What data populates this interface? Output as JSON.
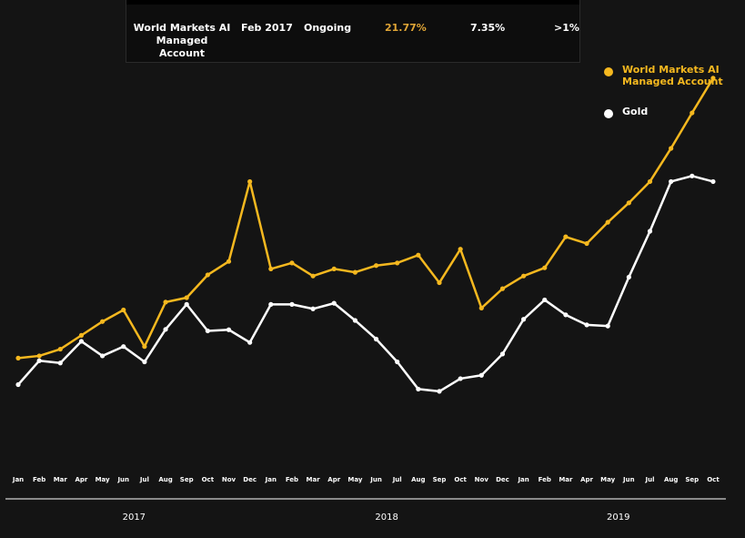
{
  "table": {
    "name": "World Markets AI Managed Account",
    "start": "Feb 2017",
    "status": "Ongoing",
    "return": "21.77%",
    "annual": "7.35%",
    "drawdown": ">1%"
  },
  "colors": {
    "accent": "#f5b81f",
    "gold_series": "#ffffff",
    "background": "#141414"
  },
  "chart_data": {
    "type": "line",
    "title": "",
    "xlabel": "",
    "ylabel": "",
    "legend_position": "top-right",
    "grid": false,
    "ylim": [
      0,
      100
    ],
    "x": [
      "Jan",
      "Feb",
      "Mar",
      "Apr",
      "May",
      "Jun",
      "Jul",
      "Aug",
      "Sep",
      "Oct",
      "Nov",
      "Dec",
      "Jan",
      "Feb",
      "Mar",
      "Apr",
      "May",
      "Jun",
      "Jul",
      "Aug",
      "Sep",
      "Oct",
      "Nov",
      "Dec",
      "Jan",
      "Feb",
      "Mar",
      "Apr",
      "May",
      "Jun",
      "Jul",
      "Aug",
      "Sep",
      "Oct"
    ],
    "year_groups": [
      {
        "label": "2017",
        "start": 0,
        "end": 11
      },
      {
        "label": "2018",
        "start": 12,
        "end": 23
      },
      {
        "label": "2019",
        "start": 24,
        "end": 33
      }
    ],
    "series": [
      {
        "name": "World Markets AI Managed Account",
        "color": "#f5b81f",
        "values": [
          26,
          26.6,
          28.4,
          32.1,
          35.8,
          38.9,
          29.1,
          41,
          42.2,
          48.3,
          51.9,
          73.3,
          49.9,
          51.5,
          48,
          49.9,
          49,
          50.8,
          51.5,
          53.6,
          46.2,
          55.2,
          39.4,
          44.6,
          48,
          50.2,
          58.5,
          56.7,
          62.4,
          67.6,
          73.3,
          82.2,
          91.7,
          101
        ]
      },
      {
        "name": "Gold",
        "color": "#ffffff",
        "values": [
          18.9,
          25.3,
          24.7,
          30.5,
          26.6,
          29.1,
          25,
          33.7,
          40.4,
          33.3,
          33.6,
          30.2,
          40.4,
          40.4,
          39.2,
          40.7,
          36.1,
          31.1,
          25,
          17.7,
          17.1,
          20.5,
          21.4,
          27.1,
          36.4,
          41.6,
          37.6,
          34.9,
          34.6,
          47.7,
          60,
          73.3,
          74.8,
          73.3
        ]
      }
    ]
  }
}
